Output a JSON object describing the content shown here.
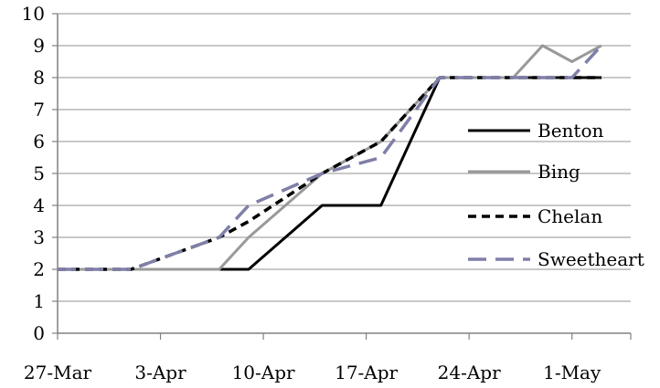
{
  "chart_data": {
    "type": "line",
    "title": "",
    "xlabel": "",
    "ylabel": "",
    "ylim": [
      0,
      10
    ],
    "y_ticks": [
      0,
      1,
      2,
      3,
      4,
      5,
      6,
      7,
      8,
      9,
      10
    ],
    "x_range": [
      "2011-03-27",
      "2011-05-05"
    ],
    "x_ticks": [
      {
        "date": "2011-03-27",
        "label": "27-Mar"
      },
      {
        "date": "2011-04-03",
        "label": "3-Apr"
      },
      {
        "date": "2011-04-10",
        "label": "10-Apr"
      },
      {
        "date": "2011-04-17",
        "label": "17-Apr"
      },
      {
        "date": "2011-04-24",
        "label": "24-Apr"
      },
      {
        "date": "2011-05-01",
        "label": "1-May"
      }
    ],
    "grid": {
      "horizontal": true,
      "vertical": false
    },
    "legend_position": "right",
    "series": [
      {
        "name": "Benton",
        "color": "#000000",
        "style": "solid",
        "points": [
          [
            "2011-03-27",
            2
          ],
          [
            "2011-04-01",
            2
          ],
          [
            "2011-04-07",
            2
          ],
          [
            "2011-04-09",
            2
          ],
          [
            "2011-04-14",
            4
          ],
          [
            "2011-04-18",
            4
          ],
          [
            "2011-04-22",
            8
          ],
          [
            "2011-04-27",
            8
          ],
          [
            "2011-04-29",
            8
          ],
          [
            "2011-05-01",
            8
          ],
          [
            "2011-05-03",
            8
          ]
        ]
      },
      {
        "name": "Bing",
        "color": "#999999",
        "style": "solid",
        "points": [
          [
            "2011-03-27",
            2
          ],
          [
            "2011-04-01",
            2
          ],
          [
            "2011-04-07",
            2
          ],
          [
            "2011-04-09",
            3
          ],
          [
            "2011-04-14",
            5
          ],
          [
            "2011-04-18",
            6
          ],
          [
            "2011-04-22",
            8
          ],
          [
            "2011-04-27",
            8
          ],
          [
            "2011-04-29",
            9
          ],
          [
            "2011-05-01",
            8.5
          ],
          [
            "2011-05-03",
            9
          ]
        ]
      },
      {
        "name": "Chelan",
        "color": "#000000",
        "style": "dash-short",
        "points": [
          [
            "2011-03-27",
            2
          ],
          [
            "2011-04-01",
            2
          ],
          [
            "2011-04-07",
            3
          ],
          [
            "2011-04-09",
            3.5
          ],
          [
            "2011-04-14",
            5
          ],
          [
            "2011-04-18",
            6
          ],
          [
            "2011-04-22",
            8
          ],
          [
            "2011-04-27",
            8
          ],
          [
            "2011-04-29",
            8
          ],
          [
            "2011-05-01",
            8
          ],
          [
            "2011-05-03",
            8
          ]
        ]
      },
      {
        "name": "Sweetheart",
        "color": "#7f7fa8",
        "style": "dash-long",
        "points": [
          [
            "2011-03-27",
            2
          ],
          [
            "2011-04-01",
            2
          ],
          [
            "2011-04-07",
            3
          ],
          [
            "2011-04-09",
            4
          ],
          [
            "2011-04-14",
            5
          ],
          [
            "2011-04-18",
            5.5
          ],
          [
            "2011-04-22",
            8
          ],
          [
            "2011-04-27",
            8
          ],
          [
            "2011-04-29",
            8
          ],
          [
            "2011-05-01",
            8
          ],
          [
            "2011-05-03",
            9
          ]
        ]
      }
    ]
  }
}
